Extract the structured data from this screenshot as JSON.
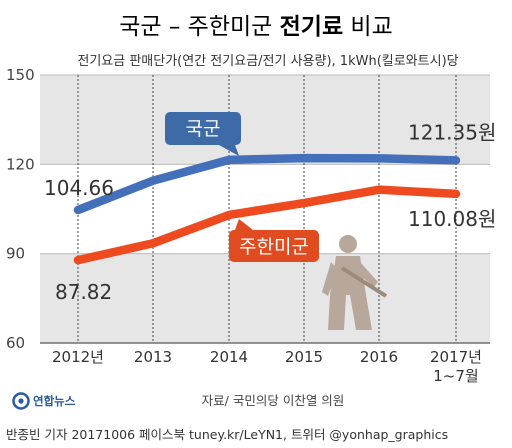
{
  "title": {
    "part1": "국군 – 주한미군 ",
    "part2": "전기료",
    "part3": " 비교"
  },
  "subtitle": "전기요금 판매단가(연간 전기요금/전기 사용량), 1kWh(킬로와트시)당",
  "source": "자료/ 국민의당 이찬열 의원",
  "footer": "반종빈 기자 20171006  페이스북 tuney.kr/LeYN1, 트위터 @yonhap_graphics",
  "logo": {
    "text": "연합뉴스",
    "color": "#2a5aa8"
  },
  "colors": {
    "korean_military": "#4470bb",
    "usfk": "#ef4a1f",
    "band": "#e6e6e6",
    "tag_blue": "#3e6aa7",
    "tag_red": "#e04b20",
    "soldier": "#b7a89b"
  },
  "chart_data": {
    "type": "line",
    "categories": [
      "2012년",
      "2013",
      "2014",
      "2015",
      "2016",
      "2017년 1~7월"
    ],
    "category_lines": [
      [
        "2012년"
      ],
      [
        "2013"
      ],
      [
        "2014"
      ],
      [
        "2015"
      ],
      [
        "2016"
      ],
      [
        "2017년",
        "1~7월"
      ]
    ],
    "y_ticks": [
      "150",
      "120",
      "90",
      "60"
    ],
    "ylim": [
      60,
      150
    ],
    "grid": true,
    "series": [
      {
        "name": "국군",
        "values": [
          104.66,
          114.5,
          121.5,
          122.1,
          122.0,
          121.35
        ],
        "first_label": "104.66",
        "last_label": "121.35원"
      },
      {
        "name": "주한미군",
        "values": [
          87.82,
          93.5,
          103.0,
          107.0,
          111.5,
          110.08
        ],
        "first_label": "87.82",
        "last_label": "110.08원"
      }
    ]
  }
}
